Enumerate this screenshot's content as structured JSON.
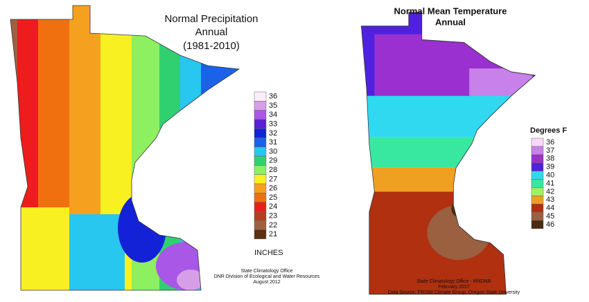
{
  "left_map": {
    "title": [
      "Normal Precipitation",
      "Annual",
      "(1981-2010)"
    ],
    "legend": {
      "entries": [
        {
          "value": 36,
          "color": "#fbeefb"
        },
        {
          "value": 35,
          "color": "#d79ee8"
        },
        {
          "value": 34,
          "color": "#a857e6"
        },
        {
          "value": 33,
          "color": "#5a1fd6"
        },
        {
          "value": 32,
          "color": "#1322d6"
        },
        {
          "value": 31,
          "color": "#1a62e8"
        },
        {
          "value": 30,
          "color": "#27c7ef"
        },
        {
          "value": 29,
          "color": "#30d070"
        },
        {
          "value": 28,
          "color": "#8cf060"
        },
        {
          "value": 27,
          "color": "#f8f020"
        },
        {
          "value": 26,
          "color": "#f6a020"
        },
        {
          "value": 25,
          "color": "#f07010"
        },
        {
          "value": 24,
          "color": "#ee1c1c"
        },
        {
          "value": 23,
          "color": "#b04020"
        },
        {
          "value": 22,
          "color": "#a06040"
        },
        {
          "value": 21,
          "color": "#5c3010"
        }
      ],
      "unit": "INCHES"
    },
    "credits": [
      "State Climatology Office",
      "DNR Division of Ecological and Water Resources",
      "August 2012"
    ]
  },
  "right_map": {
    "title": [
      "Normal Mean Temperature",
      "Annual"
    ],
    "legend": {
      "heading": "Degrees F",
      "entries": [
        {
          "value": 36,
          "color": "#fbd8fb"
        },
        {
          "value": 37,
          "color": "#c880ea"
        },
        {
          "value": 38,
          "color": "#9a30d0"
        },
        {
          "value": 39,
          "color": "#5020e0"
        },
        {
          "value": 40,
          "color": "#30d8f0"
        },
        {
          "value": 41,
          "color": "#38e8a0"
        },
        {
          "value": 42,
          "color": "#a0f060"
        },
        {
          "value": 43,
          "color": "#f0a020"
        },
        {
          "value": 44,
          "color": "#b03010"
        },
        {
          "value": 45,
          "color": "#9a6040"
        },
        {
          "value": 46,
          "color": "#4a2a10"
        }
      ]
    },
    "credits": [
      "State Climatology Office - MNDNR",
      "February 2017",
      "Data Source: PRISM Climate Group, Oregon State University"
    ]
  }
}
